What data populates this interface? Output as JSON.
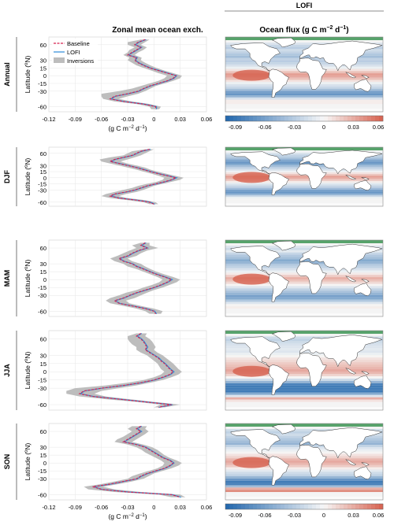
{
  "header": {
    "left_title": "Zonal mean ocean exch.",
    "right_section": "LOFI",
    "right_title": "Ocean flux (g C m",
    "right_title_exp1": "−2",
    "right_title_mid": " d",
    "right_title_exp2": "−1",
    "right_title_end": ")"
  },
  "legend": {
    "items": [
      "Baseline",
      "LOFI",
      "Inversions"
    ]
  },
  "axis": {
    "ylabel": "Latitude (°N)",
    "ylabel_main": "Latitude (",
    "ylabel_deg": "o",
    "ylabel_end": "N)",
    "xlabel_main": "(g C m",
    "xlabel_exp1": "−2",
    "xlabel_mid": " d",
    "xlabel_exp2": "−1",
    "xlabel_end": ")",
    "xticks": [
      "-0.12",
      "-0.09",
      "-0.06",
      "-0.03",
      "0",
      "0.03",
      "0.06"
    ],
    "yticks": [
      "60",
      "30",
      "15",
      "0",
      "-15",
      "-30",
      "-60"
    ]
  },
  "colorbar": {
    "ticks": [
      "-0.09",
      "-0.06",
      "-0.03",
      "0",
      "0.03",
      "0.06"
    ]
  },
  "colors": {
    "baseline": "#d6204e",
    "lofi": "#2a8ad8",
    "inversions": "#bdbdbd",
    "neg": "#2166ac",
    "pos": "#d6604d",
    "land": "#ffffff",
    "seaice": "#2f8f48"
  },
  "chart_data": [
    {
      "type": "line",
      "season": "Annual",
      "xlim": [
        -0.12,
        0.06
      ],
      "ylim": [
        -70,
        75
      ],
      "lat": [
        70,
        65,
        60,
        55,
        50,
        45,
        40,
        35,
        30,
        25,
        20,
        15,
        10,
        5,
        0,
        -5,
        -10,
        -15,
        -20,
        -25,
        -30,
        -35,
        -40,
        -45,
        -50,
        -55,
        -60,
        -65
      ],
      "series": [
        {
          "name": "Baseline",
          "values": [
            -0.01,
            -0.018,
            -0.022,
            -0.015,
            -0.02,
            -0.025,
            -0.03,
            -0.02,
            -0.022,
            -0.018,
            -0.012,
            -0.005,
            0.005,
            0.015,
            0.025,
            0.022,
            0.015,
            0.005,
            -0.005,
            -0.012,
            -0.018,
            -0.03,
            -0.045,
            -0.05,
            -0.035,
            -0.012,
            0.002,
            0.002
          ]
        },
        {
          "name": "LOFI",
          "values": [
            -0.009,
            -0.017,
            -0.021,
            -0.014,
            -0.019,
            -0.024,
            -0.029,
            -0.019,
            -0.021,
            -0.017,
            -0.011,
            -0.004,
            0.006,
            0.016,
            0.026,
            0.023,
            0.016,
            0.006,
            -0.004,
            -0.011,
            -0.017,
            -0.029,
            -0.044,
            -0.049,
            -0.034,
            -0.011,
            0.003,
            0.003
          ]
        }
      ],
      "inversions_min": [
        -0.015,
        -0.03,
        -0.03,
        -0.022,
        -0.028,
        -0.03,
        -0.035,
        -0.028,
        -0.03,
        -0.025,
        -0.02,
        -0.012,
        -0.003,
        0.005,
        0.015,
        0.012,
        0.005,
        -0.005,
        -0.015,
        -0.025,
        -0.04,
        -0.06,
        -0.06,
        -0.058,
        -0.045,
        -0.02,
        -0.005,
        -0.003
      ],
      "inversions_max": [
        -0.005,
        -0.01,
        -0.015,
        -0.008,
        -0.012,
        -0.018,
        -0.022,
        -0.014,
        -0.015,
        -0.01,
        -0.004,
        0.003,
        0.012,
        0.022,
        0.032,
        0.03,
        0.022,
        0.012,
        0.002,
        -0.004,
        -0.01,
        -0.018,
        -0.03,
        -0.04,
        -0.025,
        -0.005,
        0.008,
        0.006
      ]
    },
    {
      "type": "line",
      "season": "DJF",
      "xlim": [
        -0.12,
        0.06
      ],
      "ylim": [
        -70,
        75
      ],
      "lat": [
        70,
        65,
        60,
        55,
        50,
        45,
        40,
        35,
        30,
        25,
        20,
        15,
        10,
        5,
        0,
        -5,
        -10,
        -15,
        -20,
        -25,
        -30,
        -35,
        -40,
        -45,
        -50,
        -55,
        -60,
        -65
      ],
      "series": [
        {
          "name": "Baseline",
          "values": [
            -0.005,
            -0.015,
            -0.02,
            -0.025,
            -0.035,
            -0.045,
            -0.05,
            -0.04,
            -0.03,
            -0.02,
            -0.012,
            -0.004,
            0.005,
            0.015,
            0.025,
            0.02,
            0.012,
            0.002,
            -0.008,
            -0.015,
            -0.022,
            -0.032,
            -0.045,
            -0.05,
            -0.04,
            -0.02,
            -0.005,
            0.0
          ]
        },
        {
          "name": "LOFI",
          "values": [
            -0.004,
            -0.014,
            -0.019,
            -0.024,
            -0.034,
            -0.044,
            -0.049,
            -0.039,
            -0.029,
            -0.019,
            -0.011,
            -0.003,
            0.006,
            0.016,
            0.026,
            0.021,
            0.013,
            0.003,
            -0.007,
            -0.014,
            -0.021,
            -0.031,
            -0.044,
            -0.049,
            -0.039,
            -0.019,
            -0.004,
            0.001
          ]
        }
      ],
      "inversions_min": [
        -0.01,
        -0.025,
        -0.03,
        -0.035,
        -0.05,
        -0.062,
        -0.06,
        -0.05,
        -0.04,
        -0.03,
        -0.02,
        -0.012,
        -0.003,
        0.005,
        0.012,
        0.01,
        0.003,
        -0.008,
        -0.018,
        -0.025,
        -0.035,
        -0.045,
        -0.055,
        -0.06,
        -0.05,
        -0.03,
        -0.012,
        -0.005
      ],
      "inversions_max": [
        0.0,
        -0.005,
        -0.01,
        -0.015,
        -0.022,
        -0.03,
        -0.038,
        -0.03,
        -0.02,
        -0.01,
        -0.004,
        0.004,
        0.014,
        0.024,
        0.034,
        0.03,
        0.02,
        0.01,
        0.0,
        -0.006,
        -0.012,
        -0.02,
        -0.032,
        -0.04,
        -0.03,
        -0.01,
        0.002,
        0.005
      ]
    },
    {
      "type": "line",
      "season": "MAM",
      "xlim": [
        -0.12,
        0.06
      ],
      "ylim": [
        -70,
        75
      ],
      "lat": [
        70,
        65,
        60,
        55,
        50,
        45,
        40,
        35,
        30,
        25,
        20,
        15,
        10,
        5,
        0,
        -5,
        -10,
        -15,
        -20,
        -25,
        -30,
        -35,
        -40,
        -45,
        -50,
        -55,
        -60,
        -65
      ],
      "series": [
        {
          "name": "Baseline",
          "values": [
            -0.01,
            -0.015,
            -0.008,
            -0.018,
            -0.025,
            -0.03,
            -0.04,
            -0.035,
            -0.025,
            -0.02,
            -0.012,
            -0.005,
            0.003,
            0.012,
            0.02,
            0.015,
            0.008,
            0.0,
            -0.01,
            -0.02,
            -0.028,
            -0.035,
            -0.045,
            -0.04,
            -0.025,
            -0.01,
            0.0,
            0.002
          ]
        },
        {
          "name": "LOFI",
          "values": [
            -0.009,
            -0.014,
            -0.007,
            -0.017,
            -0.024,
            -0.029,
            -0.039,
            -0.034,
            -0.024,
            -0.019,
            -0.011,
            -0.004,
            0.004,
            0.013,
            0.021,
            0.016,
            0.009,
            0.001,
            -0.009,
            -0.019,
            -0.027,
            -0.034,
            -0.044,
            -0.039,
            -0.024,
            -0.009,
            0.001,
            0.003
          ]
        }
      ],
      "inversions_min": [
        -0.015,
        -0.025,
        -0.02,
        -0.028,
        -0.035,
        -0.042,
        -0.05,
        -0.045,
        -0.035,
        -0.03,
        -0.02,
        -0.012,
        -0.004,
        0.004,
        0.01,
        0.006,
        -0.002,
        -0.012,
        -0.02,
        -0.032,
        -0.04,
        -0.05,
        -0.055,
        -0.05,
        -0.035,
        -0.02,
        -0.01,
        -0.005
      ],
      "inversions_max": [
        -0.005,
        -0.005,
        0.005,
        -0.008,
        -0.015,
        -0.02,
        -0.03,
        -0.025,
        -0.015,
        -0.01,
        -0.004,
        0.003,
        0.012,
        0.022,
        0.03,
        0.026,
        0.018,
        0.01,
        0.0,
        -0.008,
        -0.015,
        -0.022,
        -0.032,
        -0.028,
        -0.015,
        0.0,
        0.01,
        0.008
      ]
    },
    {
      "type": "line",
      "season": "JJA",
      "xlim": [
        -0.12,
        0.06
      ],
      "ylim": [
        -70,
        75
      ],
      "lat": [
        70,
        65,
        60,
        55,
        50,
        45,
        40,
        35,
        30,
        25,
        20,
        15,
        10,
        5,
        0,
        -5,
        -10,
        -15,
        -20,
        -25,
        -30,
        -35,
        -40,
        -45,
        -50,
        -55,
        -60,
        -65
      ],
      "series": [
        {
          "name": "Baseline",
          "values": [
            -0.015,
            -0.02,
            -0.015,
            -0.012,
            -0.01,
            -0.008,
            -0.01,
            -0.005,
            0.0,
            0.005,
            0.008,
            0.012,
            0.015,
            0.018,
            0.022,
            0.018,
            0.01,
            0.0,
            -0.015,
            -0.035,
            -0.06,
            -0.08,
            -0.085,
            -0.07,
            -0.04,
            -0.01,
            0.02,
            0.005
          ]
        },
        {
          "name": "LOFI",
          "values": [
            -0.014,
            -0.019,
            -0.014,
            -0.011,
            -0.009,
            -0.007,
            -0.009,
            -0.004,
            0.001,
            0.006,
            0.009,
            0.013,
            0.016,
            0.019,
            0.023,
            0.019,
            0.011,
            0.001,
            -0.014,
            -0.034,
            -0.059,
            -0.079,
            -0.084,
            -0.069,
            -0.039,
            -0.009,
            0.021,
            0.006
          ]
        }
      ],
      "inversions_min": [
        -0.02,
        -0.03,
        -0.03,
        -0.028,
        -0.025,
        -0.02,
        -0.02,
        -0.015,
        -0.008,
        -0.004,
        0.0,
        0.004,
        0.006,
        0.008,
        0.012,
        0.008,
        0.0,
        -0.012,
        -0.03,
        -0.055,
        -0.09,
        -0.1,
        -0.1,
        -0.085,
        -0.055,
        -0.02,
        0.008,
        0.0
      ],
      "inversions_max": [
        -0.008,
        -0.01,
        -0.005,
        -0.002,
        0.0,
        0.002,
        0.0,
        0.004,
        0.01,
        0.014,
        0.018,
        0.022,
        0.025,
        0.028,
        0.032,
        0.028,
        0.02,
        0.01,
        -0.004,
        -0.02,
        -0.04,
        -0.06,
        -0.068,
        -0.055,
        -0.028,
        0.0,
        0.03,
        0.012
      ]
    },
    {
      "type": "line",
      "season": "SON",
      "xlim": [
        -0.12,
        0.06
      ],
      "ylim": [
        -70,
        75
      ],
      "lat": [
        70,
        65,
        60,
        55,
        50,
        45,
        40,
        35,
        30,
        25,
        20,
        15,
        10,
        5,
        0,
        -5,
        -10,
        -15,
        -20,
        -25,
        -30,
        -35,
        -40,
        -45,
        -50,
        -55,
        -60,
        -65
      ],
      "series": [
        {
          "name": "Baseline",
          "values": [
            -0.015,
            -0.02,
            -0.015,
            -0.02,
            -0.025,
            -0.03,
            -0.035,
            -0.02,
            -0.01,
            -0.005,
            0.0,
            0.005,
            0.01,
            0.018,
            0.022,
            0.018,
            0.012,
            0.002,
            -0.008,
            -0.015,
            -0.02,
            -0.035,
            -0.05,
            -0.07,
            -0.06,
            -0.03,
            0.02,
            0.03
          ]
        },
        {
          "name": "LOFI",
          "values": [
            -0.014,
            -0.019,
            -0.014,
            -0.019,
            -0.024,
            -0.029,
            -0.034,
            -0.019,
            -0.009,
            -0.004,
            0.001,
            0.006,
            0.011,
            0.019,
            0.023,
            0.019,
            0.013,
            0.003,
            -0.007,
            -0.014,
            -0.019,
            -0.034,
            -0.049,
            -0.069,
            -0.059,
            -0.029,
            0.021,
            0.031
          ]
        }
      ],
      "inversions_min": [
        -0.025,
        -0.03,
        -0.025,
        -0.03,
        -0.035,
        -0.042,
        -0.045,
        -0.03,
        -0.02,
        -0.014,
        -0.01,
        -0.004,
        0.002,
        0.008,
        0.012,
        0.01,
        0.004,
        -0.006,
        -0.016,
        -0.025,
        -0.03,
        -0.045,
        -0.06,
        -0.08,
        -0.075,
        -0.045,
        0.005,
        0.02
      ],
      "inversions_max": [
        -0.008,
        -0.01,
        -0.006,
        -0.01,
        -0.015,
        -0.02,
        -0.025,
        -0.012,
        -0.002,
        0.004,
        0.008,
        0.012,
        0.018,
        0.026,
        0.032,
        0.028,
        0.02,
        0.01,
        0.0,
        -0.006,
        -0.012,
        -0.025,
        -0.04,
        -0.058,
        -0.045,
        -0.015,
        0.03,
        0.036
      ]
    }
  ]
}
